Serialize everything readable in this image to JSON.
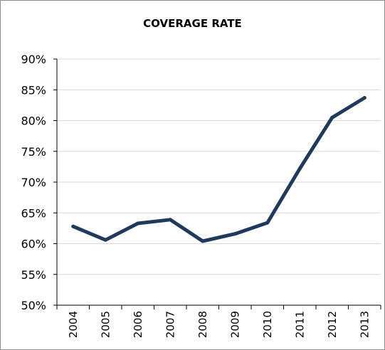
{
  "chart_data": {
    "type": "line",
    "title": "COVERAGE RATE",
    "xlabel": "",
    "ylabel": "",
    "categories": [
      "2004",
      "2005",
      "2006",
      "2007",
      "2008",
      "2009",
      "2010",
      "2011",
      "2012",
      "2013"
    ],
    "series": [
      {
        "values": [
          62.8,
          60.6,
          63.3,
          63.9,
          60.4,
          61.6,
          63.4,
          72.2,
          80.5,
          83.7
        ]
      }
    ],
    "ylim": [
      50,
      90
    ],
    "yticks": [
      "50%",
      "55%",
      "60%",
      "65%",
      "70%",
      "75%",
      "80%",
      "85%",
      "90%"
    ],
    "grid": true,
    "legend": "none",
    "colors": {
      "line": "#1f3a5f",
      "grid": "#d9d9d9",
      "axis": "#000000"
    }
  }
}
